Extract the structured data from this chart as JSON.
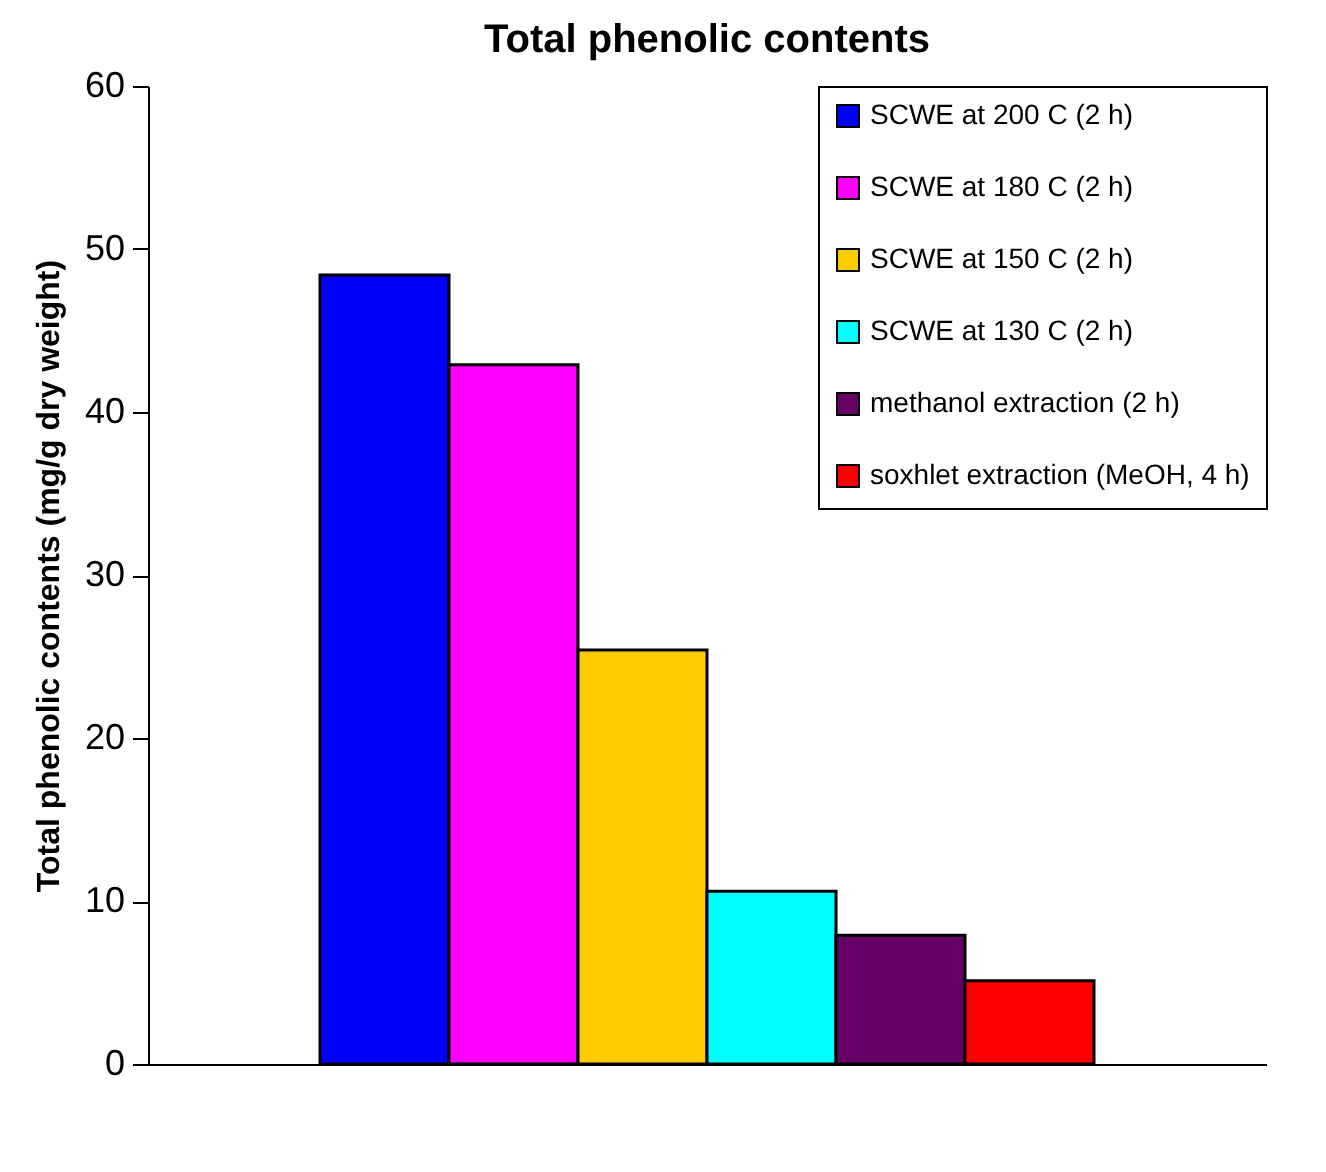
{
  "chart_data": {
    "type": "bar",
    "title": "Total phenolic contents",
    "ylabel": "Total phenolic contents (mg/g dry weight)",
    "categories": [
      null
    ],
    "series": [
      {
        "name": "SCWE at 200 C  (2 h)",
        "color": "#0000ff",
        "values": [
          48.4
        ]
      },
      {
        "name": "SCWE at 180 C  (2 h)",
        "color": "#ff00ff",
        "values": [
          42.9
        ]
      },
      {
        "name": "SCWE at 150 C  (2 h)",
        "color": "#ffcc00",
        "values": [
          25.4
        ]
      },
      {
        "name": "SCWE at 130 C  (2 h)",
        "color": "#00ffff",
        "values": [
          10.6
        ]
      },
      {
        "name": "methanol extraction (2 h)",
        "color": "#660066",
        "values": [
          7.9
        ]
      },
      {
        "name": "soxhlet extraction (MeOH, 4 h)",
        "color": "#ff0000",
        "values": [
          5.1
        ]
      }
    ],
    "ylim": [
      0,
      60
    ],
    "yticks": [
      0,
      10,
      20,
      30,
      40,
      50,
      60
    ],
    "grid": false,
    "legend": "top right",
    "tick_labels": "y"
  }
}
